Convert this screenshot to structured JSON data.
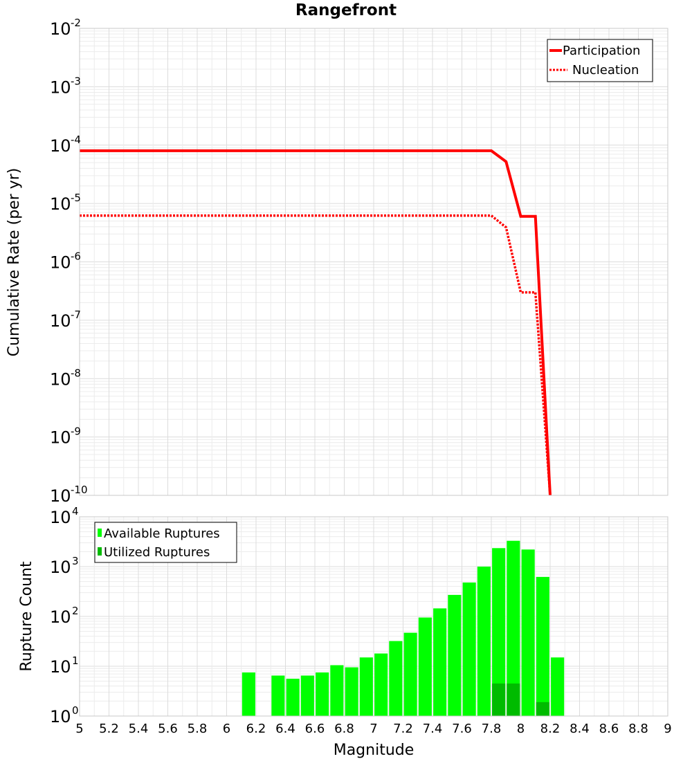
{
  "title": "Rangefront",
  "chart_data": [
    {
      "type": "line",
      "title": "Rangefront",
      "xlabel": "Magnitude",
      "ylabel": "Cumulative Rate (per yr)",
      "yscale": "log",
      "xlim": [
        5,
        9
      ],
      "ylim_exponents": [
        -10,
        -2
      ],
      "y_tick_labels": [
        {
          "base": "10",
          "exp": "-2"
        },
        {
          "base": "10",
          "exp": "-3"
        },
        {
          "base": "10",
          "exp": "-4"
        },
        {
          "base": "10",
          "exp": "-5"
        },
        {
          "base": "10",
          "exp": "-6"
        },
        {
          "base": "10",
          "exp": "-7"
        },
        {
          "base": "10",
          "exp": "-8"
        },
        {
          "base": "10",
          "exp": "-9"
        },
        {
          "base": "10",
          "exp": "-10"
        }
      ],
      "legend": "top-right",
      "grid": true,
      "series": [
        {
          "name": "Participation",
          "color": "#ff0000",
          "style": "solid",
          "x": [
            5.0,
            7.8,
            7.9,
            8.0,
            8.1,
            8.2
          ],
          "y": [
            8e-05,
            8e-05,
            5.2e-05,
            6e-06,
            6e-06,
            1e-10
          ]
        },
        {
          "name": "Nucleation",
          "color": "#ff0000",
          "style": "dotted",
          "x": [
            5.0,
            7.8,
            7.9,
            8.0,
            8.1,
            8.2
          ],
          "y": [
            6.2e-06,
            6.2e-06,
            3.9e-06,
            3e-07,
            3e-07,
            1e-10
          ]
        }
      ]
    },
    {
      "type": "bar",
      "xlabel": "Magnitude",
      "ylabel": "Rupture Count",
      "yscale": "log",
      "xlim": [
        5,
        9
      ],
      "ylim_exponents": [
        0,
        4
      ],
      "y_tick_labels": [
        {
          "base": "10",
          "exp": "4"
        },
        {
          "base": "10",
          "exp": "3"
        },
        {
          "base": "10",
          "exp": "2"
        },
        {
          "base": "10",
          "exp": "1"
        },
        {
          "base": "10",
          "exp": "0"
        }
      ],
      "x_tick_labels": [
        "5",
        "5.2",
        "5.4",
        "5.6",
        "5.8",
        "6",
        "6.2",
        "6.4",
        "6.6",
        "6.8",
        "7",
        "7.2",
        "7.4",
        "7.6",
        "7.8",
        "8",
        "8.2",
        "8.4",
        "8.6",
        "8.8",
        "9"
      ],
      "legend": "top-left",
      "grid": true,
      "series": [
        {
          "name": "Available Ruptures",
          "color": "#00ff00",
          "x": [
            6.15,
            6.35,
            6.45,
            6.55,
            6.65,
            6.75,
            6.85,
            6.95,
            7.05,
            7.15,
            7.25,
            7.35,
            7.45,
            7.55,
            7.65,
            7.75,
            7.85,
            7.95,
            8.05,
            8.15,
            8.25
          ],
          "values": [
            7.5,
            6.5,
            5.6,
            6.5,
            7.5,
            10.5,
            9.5,
            15,
            18,
            32,
            47,
            95,
            145,
            270,
            480,
            1000,
            2350,
            3300,
            2200,
            620,
            15
          ]
        },
        {
          "name": "Utilized Ruptures",
          "color": "#00bb00",
          "x": [
            7.85,
            7.95,
            8.15
          ],
          "values": [
            4.5,
            4.5,
            1.9
          ]
        }
      ]
    }
  ]
}
